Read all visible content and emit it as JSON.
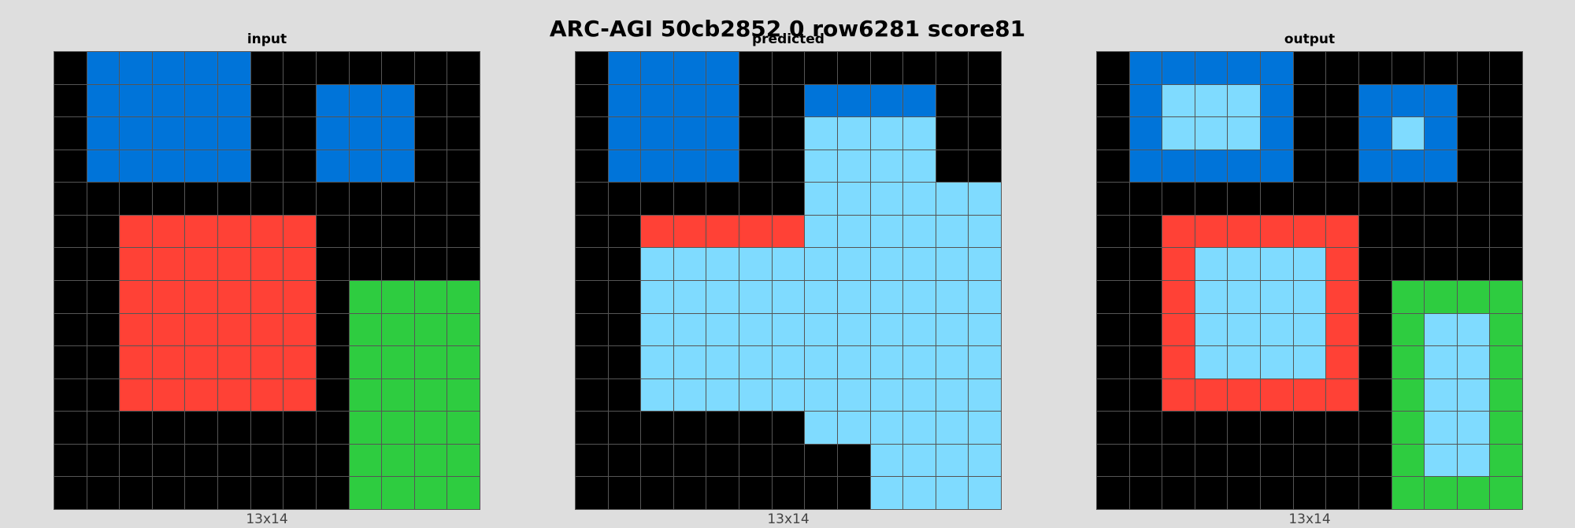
{
  "title": "ARC-AGI 50cb2852 0 row6281 score81",
  "palette": {
    "0": "#000000",
    "1": "#0074d9",
    "2": "#ff4136",
    "3": "#2ecc40",
    "8": "#7fdbff"
  },
  "panels": [
    {
      "title": "input",
      "dims": "13x14",
      "rows": [
        "0111110000000",
        "0111110011100",
        "0111110011100",
        "0111110011100",
        "0000000000000",
        "0022222200000",
        "0022222200000",
        "0022222203333",
        "0022222203333",
        "0022222203333",
        "0022222203333",
        "0000000003333",
        "0000000003333",
        "0000000003333"
      ]
    },
    {
      "title": "predicted",
      "dims": "13x14",
      "rows": [
        "0111100000000",
        "0111100111100",
        "0111100888800",
        "0111100888800",
        "0000000888888",
        "0022222888888",
        "0088888888888",
        "0088888888888",
        "0088888888888",
        "0088888888888",
        "0088888888888",
        "0000000888888",
        "0000000008888",
        "0000000008888"
      ]
    },
    {
      "title": "output",
      "dims": "13x14",
      "rows": [
        "0111110000000",
        "0188810011100",
        "0188810018100",
        "0111110011100",
        "0000000000000",
        "0022222200000",
        "0028888200000",
        "0028888203333",
        "0028888203883",
        "0028888203883",
        "0022222203883",
        "0000000003883",
        "0000000003883",
        "0000000003333"
      ]
    }
  ]
}
